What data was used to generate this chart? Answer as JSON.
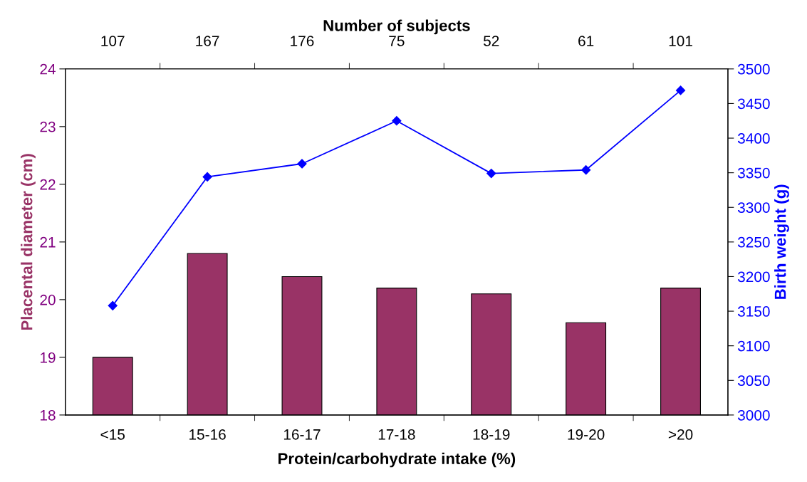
{
  "chart_data": {
    "type": "bar",
    "x2label": "Number of subjects",
    "xlabel": "Protein/carbohydrate intake (%)",
    "ylabel": "Placental diameter (cm)",
    "y2label": "Birth weight (g)",
    "categories": [
      "<15",
      "15-16",
      "16-17",
      "17-18",
      "18-19",
      "19-20",
      ">20"
    ],
    "series": [
      {
        "color": "#993366",
        "values": [
          19.0,
          20.8,
          20.4,
          20.2,
          20.1,
          19.6,
          20.2
        ]
      },
      {
        "type": "line",
        "axis": "y2",
        "color": "#0000ff",
        "marker": "diamond",
        "line_style": "solid",
        "values": [
          3158,
          3344,
          3363,
          3425,
          3349,
          3354,
          3469
        ]
      }
    ],
    "ylim": [
      18,
      24
    ],
    "yticks": [
      18,
      19,
      20,
      21,
      22,
      23,
      24
    ],
    "y2lim": [
      3000,
      3500
    ],
    "y2ticks": [
      3000,
      3050,
      3100,
      3150,
      3200,
      3250,
      3300,
      3350,
      3400,
      3450,
      3500
    ],
    "annotations": [
      "107",
      "167",
      "176",
      "75",
      "52",
      "61",
      "101"
    ],
    "grid": false,
    "legend": false
  }
}
